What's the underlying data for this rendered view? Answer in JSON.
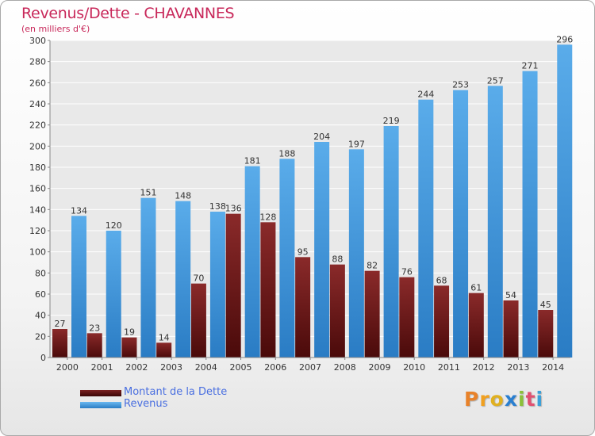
{
  "header": {
    "title": "Revenus/Dette - CHAVANNES",
    "subtitle": "(en milliers d'€)"
  },
  "legend": {
    "debt_label": "Montant de la Dette",
    "revenue_label": "Revenus"
  },
  "logo": {
    "letters": [
      "P",
      "r",
      "o",
      "x",
      "i",
      "t",
      "i"
    ]
  },
  "colors": {
    "debt_top": "#8a2a2a",
    "debt_bottom": "#4a0a0a",
    "revenue_top": "#5aacea",
    "revenue_bottom": "#2a7cc4",
    "title": "#c8285a",
    "legend_text": "#4a6fe0",
    "grid": "#ffffff",
    "label": "#333333"
  },
  "chart_data": {
    "type": "bar",
    "categories": [
      "2000",
      "2001",
      "2002",
      "2003",
      "2004",
      "2005",
      "2006",
      "2007",
      "2008",
      "2009",
      "2010",
      "2011",
      "2012",
      "2013",
      "2014"
    ],
    "series": [
      {
        "name": "Montant de la Dette",
        "values": [
          27,
          23,
          19,
          14,
          70,
          136,
          128,
          95,
          88,
          82,
          76,
          68,
          61,
          54,
          45
        ]
      },
      {
        "name": "Revenus",
        "values": [
          134,
          120,
          151,
          148,
          138,
          181,
          188,
          204,
          197,
          219,
          244,
          253,
          257,
          271,
          296
        ]
      }
    ],
    "ylim": [
      0,
      300
    ],
    "yticks": [
      0,
      20,
      40,
      60,
      80,
      100,
      120,
      140,
      160,
      180,
      200,
      220,
      240,
      260,
      280,
      300
    ],
    "grid": true,
    "legend_position": "bottom-left"
  }
}
